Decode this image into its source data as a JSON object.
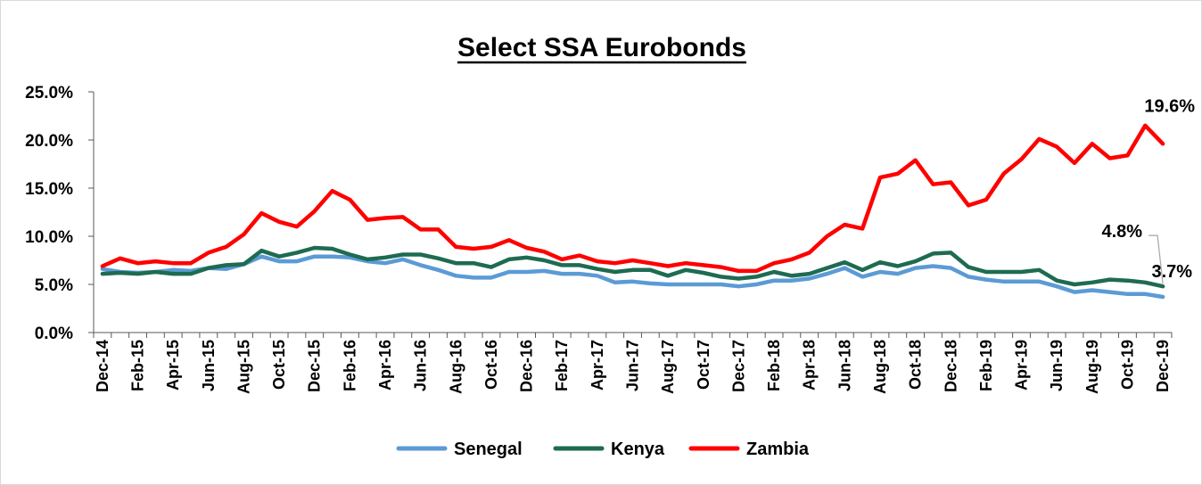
{
  "chart_data": {
    "type": "line",
    "title": "Select SSA Eurobonds",
    "xlabel": "",
    "ylabel": "",
    "ylim": [
      0,
      25
    ],
    "y_ticks": [
      "0.0%",
      "5.0%",
      "10.0%",
      "15.0%",
      "20.0%",
      "25.0%"
    ],
    "x": [
      "Dec-14",
      "Jan-15",
      "Feb-15",
      "Mar-15",
      "Apr-15",
      "May-15",
      "Jun-15",
      "Jul-15",
      "Aug-15",
      "Sep-15",
      "Oct-15",
      "Nov-15",
      "Dec-15",
      "Jan-16",
      "Feb-16",
      "Mar-16",
      "Apr-16",
      "May-16",
      "Jun-16",
      "Jul-16",
      "Aug-16",
      "Sep-16",
      "Oct-16",
      "Nov-16",
      "Dec-16",
      "Jan-17",
      "Feb-17",
      "Mar-17",
      "Apr-17",
      "May-17",
      "Jun-17",
      "Jul-17",
      "Aug-17",
      "Sep-17",
      "Oct-17",
      "Nov-17",
      "Dec-17",
      "Jan-18",
      "Feb-18",
      "Mar-18",
      "Apr-18",
      "May-18",
      "Jun-18",
      "Jul-18",
      "Aug-18",
      "Sep-18",
      "Oct-18",
      "Nov-18",
      "Dec-18",
      "Jan-19",
      "Feb-19",
      "Mar-19",
      "Apr-19",
      "May-19",
      "Jun-19",
      "Jul-19",
      "Aug-19",
      "Sep-19",
      "Oct-19",
      "Nov-19",
      "Dec-19"
    ],
    "x_tick_labels": [
      "Dec-14",
      "Feb-15",
      "Apr-15",
      "Jun-15",
      "Aug-15",
      "Oct-15",
      "Dec-15",
      "Feb-16",
      "Apr-16",
      "Jun-16",
      "Aug-16",
      "Oct-16",
      "Dec-16",
      "Feb-17",
      "Apr-17",
      "Jun-17",
      "Aug-17",
      "Oct-17",
      "Dec-17",
      "Feb-18",
      "Apr-18",
      "Jun-18",
      "Aug-18",
      "Oct-18",
      "Dec-18",
      "Feb-19",
      "Apr-19",
      "Jun-19",
      "Aug-19",
      "Oct-19",
      "Dec-19"
    ],
    "grid": false,
    "legend_position": "bottom",
    "series": [
      {
        "name": "Senegal",
        "color": "#5b9bd5",
        "values": [
          6.6,
          6.3,
          6.2,
          6.3,
          6.5,
          6.4,
          6.7,
          6.6,
          7.1,
          7.9,
          7.4,
          7.4,
          7.9,
          7.9,
          7.8,
          7.4,
          7.2,
          7.6,
          7.0,
          6.5,
          5.9,
          5.7,
          5.7,
          6.3,
          6.3,
          6.4,
          6.1,
          6.1,
          5.9,
          5.2,
          5.3,
          5.1,
          5.0,
          5.0,
          5.0,
          5.0,
          4.8,
          5.0,
          5.4,
          5.4,
          5.6,
          6.1,
          6.7,
          5.8,
          6.3,
          6.1,
          6.7,
          6.9,
          6.7,
          5.8,
          5.5,
          5.3,
          5.3,
          5.3,
          4.8,
          4.2,
          4.4,
          4.2,
          4.0,
          4.0,
          3.7
        ]
      },
      {
        "name": "Kenya",
        "color": "#1e6b52",
        "values": [
          6.1,
          6.2,
          6.1,
          6.3,
          6.1,
          6.1,
          6.7,
          7.0,
          7.1,
          8.5,
          7.9,
          8.3,
          8.8,
          8.7,
          8.1,
          7.6,
          7.8,
          8.1,
          8.1,
          7.7,
          7.2,
          7.2,
          6.8,
          7.6,
          7.8,
          7.5,
          7.0,
          7.0,
          6.6,
          6.3,
          6.5,
          6.5,
          5.9,
          6.5,
          6.2,
          5.8,
          5.6,
          5.8,
          6.3,
          5.9,
          6.1,
          6.7,
          7.3,
          6.5,
          7.3,
          6.9,
          7.4,
          8.2,
          8.3,
          6.8,
          6.3,
          6.3,
          6.3,
          6.5,
          5.4,
          5.0,
          5.2,
          5.5,
          5.4,
          5.2,
          4.8
        ]
      },
      {
        "name": "Zambia",
        "color": "#ff0000",
        "values": [
          6.9,
          7.7,
          7.2,
          7.4,
          7.2,
          7.2,
          8.3,
          8.9,
          10.2,
          12.4,
          11.5,
          11.0,
          12.6,
          14.7,
          13.8,
          11.7,
          11.9,
          12.0,
          10.7,
          10.7,
          8.9,
          8.7,
          8.9,
          9.6,
          8.8,
          8.4,
          7.6,
          8.0,
          7.4,
          7.2,
          7.5,
          7.2,
          6.9,
          7.2,
          7.0,
          6.8,
          6.4,
          6.4,
          7.2,
          7.6,
          8.3,
          10.0,
          11.2,
          10.8,
          16.1,
          16.5,
          17.9,
          15.4,
          15.6,
          13.2,
          13.8,
          16.5,
          18.0,
          20.1,
          19.3,
          17.6,
          19.6,
          18.1,
          18.4,
          21.5,
          19.6
        ]
      }
    ],
    "annotations": [
      {
        "series": "Zambia",
        "x": "Dec-19",
        "label": "19.6%"
      },
      {
        "series": "Kenya",
        "x": "Dec-19",
        "label": "4.8%"
      },
      {
        "series": "Senegal",
        "x": "Dec-19",
        "label": "3.7%"
      }
    ]
  }
}
